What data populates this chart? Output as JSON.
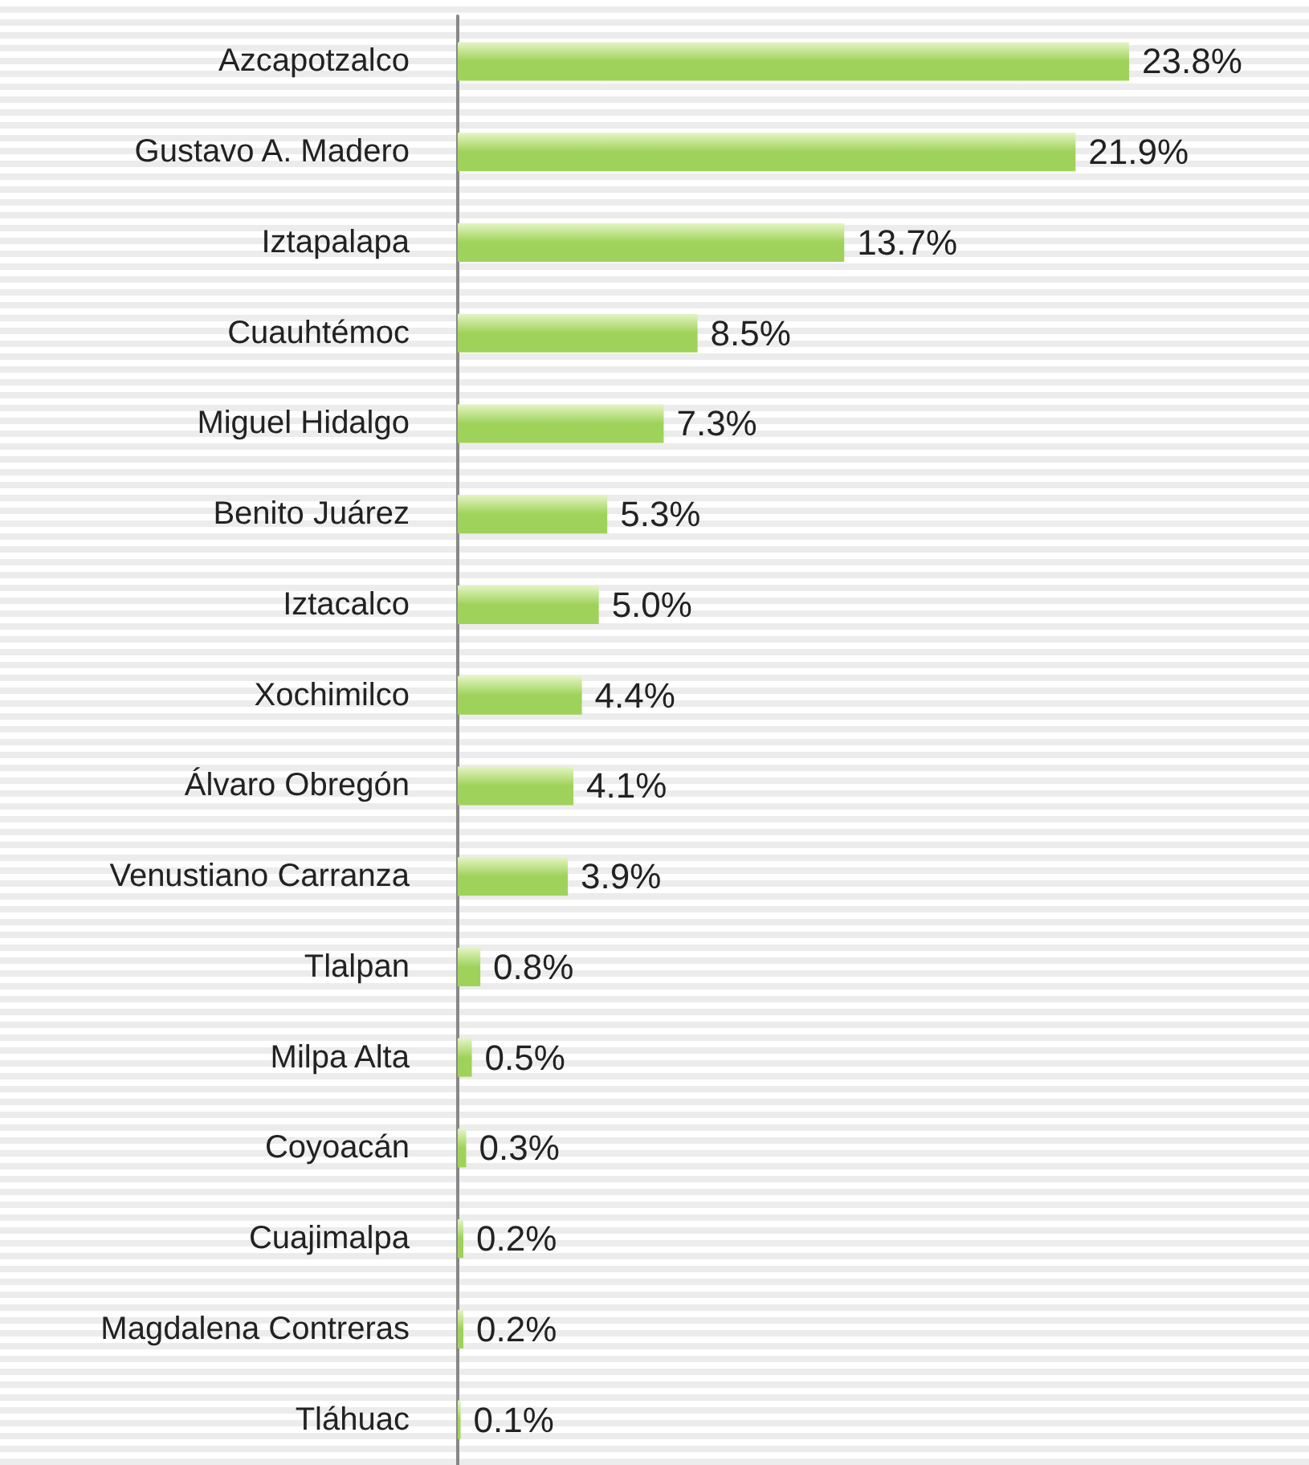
{
  "chart_data": {
    "type": "bar",
    "orientation": "horizontal",
    "color": "#9fd25a",
    "categories": [
      "Azcapotzalco",
      "Gustavo A. Madero",
      "Iztapalapa",
      "Cuauhtémoc",
      "Miguel Hidalgo",
      "Benito Juárez",
      "Iztacalco",
      "Xochimilco",
      "Álvaro Obregón",
      "Venustiano Carranza",
      "Tlalpan",
      "Milpa Alta",
      "Coyoacán",
      "Cuajimalpa",
      "Magdalena Contreras",
      "Tláhuac"
    ],
    "values": [
      23.8,
      21.9,
      13.7,
      8.5,
      7.3,
      5.3,
      5.0,
      4.4,
      4.1,
      3.9,
      0.8,
      0.5,
      0.3,
      0.2,
      0.2,
      0.1
    ],
    "value_labels": [
      "23.8%",
      "21.9%",
      "13.7%",
      "8.5%",
      "7.3%",
      "5.3%",
      "5.0%",
      "4.4%",
      "4.1%",
      "3.9%",
      "0.8%",
      "0.5%",
      "0.3%",
      "0.2%",
      "0.2%",
      "0.1%"
    ],
    "grid": false
  }
}
